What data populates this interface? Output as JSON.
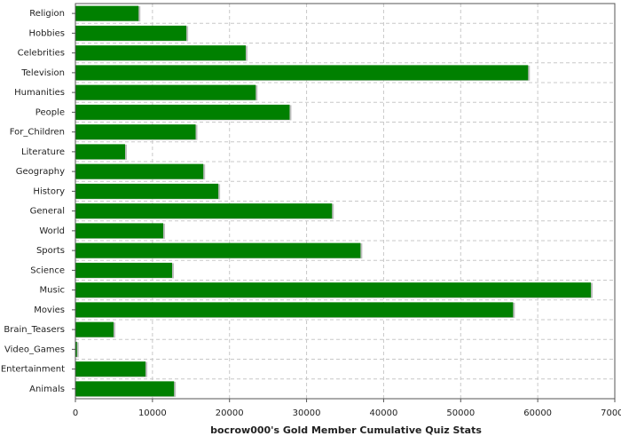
{
  "chart_data": {
    "type": "barh",
    "xlabel": "bocrow000's Gold Member Cumulative Quiz Stats",
    "categories": [
      "Religion",
      "Hobbies",
      "Celebrities",
      "Television",
      "Humanities",
      "People",
      "For_Children",
      "Literature",
      "Geography",
      "History",
      "General",
      "World",
      "Sports",
      "Science",
      "Music",
      "Movies",
      "Brain_Teasers",
      "Video_Games",
      "Entertainment",
      "Animals"
    ],
    "values": [
      8200,
      14400,
      22100,
      58750,
      23400,
      27800,
      15600,
      6450,
      16600,
      18550,
      33300,
      11400,
      37000,
      12550,
      66900,
      56800,
      4950,
      200,
      9100,
      12800
    ],
    "color": "#008000",
    "xlim": [
      0,
      70000
    ],
    "xticks": [
      0,
      10000,
      20000,
      30000,
      40000,
      50000,
      60000,
      70000
    ],
    "grid": true
  }
}
